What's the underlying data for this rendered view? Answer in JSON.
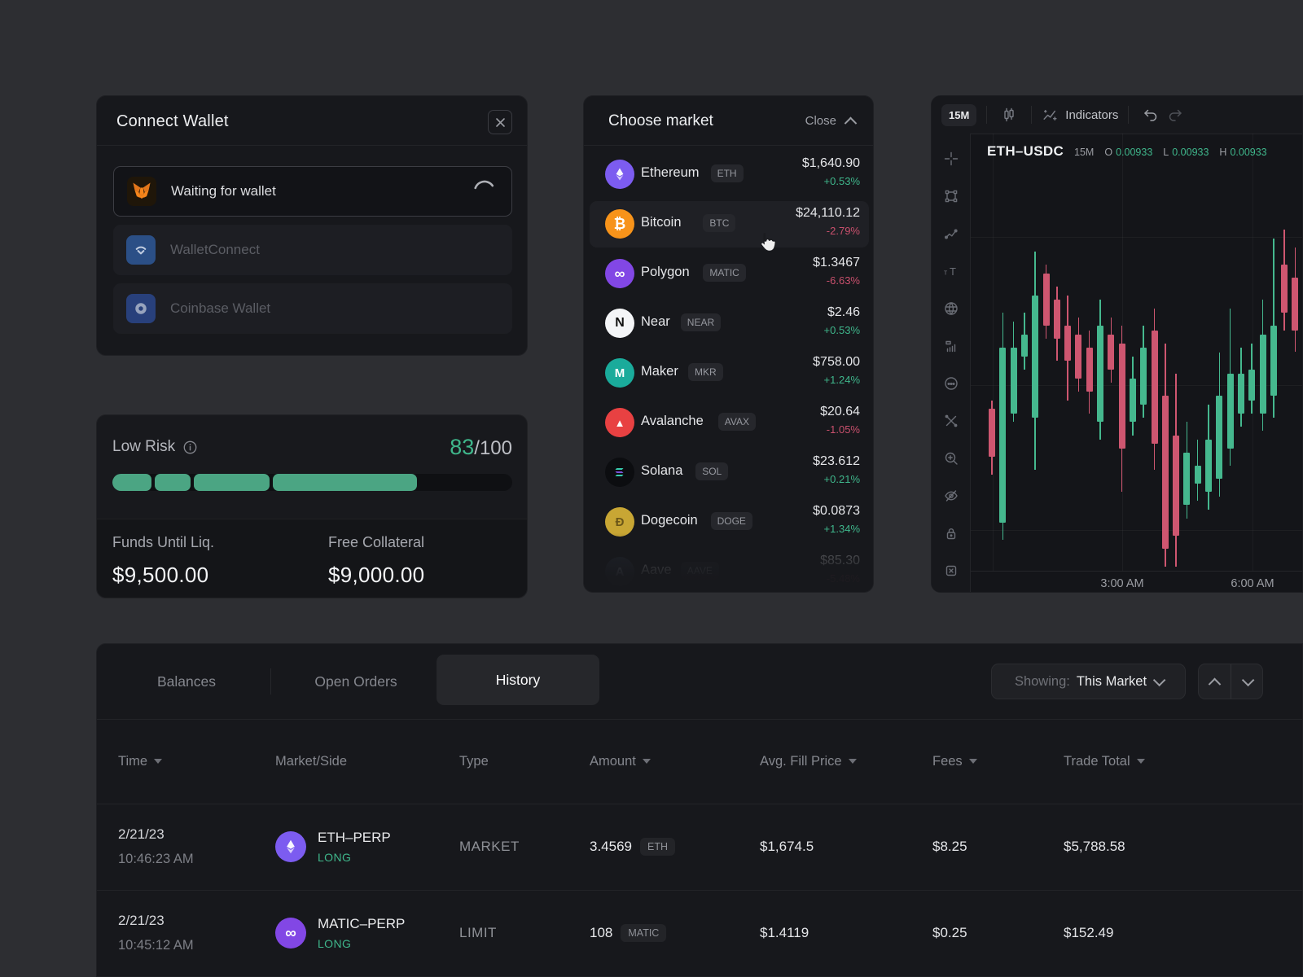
{
  "colors": {
    "accent_green": "#3fb68b",
    "accent_red": "#c9506d",
    "candle_up": "#45b88e",
    "candle_down": "#ce5670",
    "purple": "#7c5cf0"
  },
  "connect_wallet": {
    "title": "Connect Wallet",
    "options": [
      {
        "label": "Waiting for wallet",
        "icon": "metamask",
        "state": "loading"
      },
      {
        "label": "WalletConnect",
        "icon": "walletconnect",
        "state": "idle"
      },
      {
        "label": "Coinbase Wallet",
        "icon": "coinbase",
        "state": "idle"
      }
    ]
  },
  "risk": {
    "level_label": "Low Risk",
    "score": "83",
    "score_max": "/100",
    "funds_label": "Funds Until Liq.",
    "funds_value": "$9,500.00",
    "collateral_label": "Free Collateral",
    "collateral_value": "$9,000.00"
  },
  "market_picker": {
    "title": "Choose market",
    "close_label": "Close",
    "markets": [
      {
        "name": "Ethereum",
        "symbol": "ETH",
        "price": "$1,640.90",
        "change": "+0.53%",
        "dir": "up"
      },
      {
        "name": "Bitcoin",
        "symbol": "BTC",
        "price": "$24,110.12",
        "change": "-2.79%",
        "dir": "down"
      },
      {
        "name": "Polygon",
        "symbol": "MATIC",
        "price": "$1.3467",
        "change": "-6.63%",
        "dir": "down"
      },
      {
        "name": "Near",
        "symbol": "NEAR",
        "price": "$2.46",
        "change": "+0.53%",
        "dir": "up"
      },
      {
        "name": "Maker",
        "symbol": "MKR",
        "price": "$758.00",
        "change": "+1.24%",
        "dir": "up"
      },
      {
        "name": "Avalanche",
        "symbol": "AVAX",
        "price": "$20.64",
        "change": "-1.05%",
        "dir": "down"
      },
      {
        "name": "Solana",
        "symbol": "SOL",
        "price": "$23.612",
        "change": "+0.21%",
        "dir": "up"
      },
      {
        "name": "Dogecoin",
        "symbol": "DOGE",
        "price": "$0.0873",
        "change": "+1.34%",
        "dir": "up"
      },
      {
        "name": "Aave",
        "symbol": "AAVE",
        "price": "$85.30",
        "change": "-5.48%",
        "dir": "down"
      }
    ]
  },
  "chart": {
    "toolbar": {
      "interval": "15M",
      "indicators_label": "Indicators"
    },
    "legend": {
      "pair": "ETH–USDC",
      "interval": "15M",
      "o_label": "O",
      "o": "0.00933",
      "l_label": "L",
      "l": "0.00933",
      "h_label": "H",
      "h": "0.00933"
    },
    "time_labels": [
      "3:00 AM",
      "6:00 AM"
    ],
    "chart_data": {
      "type": "candlestick",
      "note": "values are percent of plot height from top: [dir, bodyTop, bodyBottom, wickHigh, wickLow]",
      "candles": [
        [
          "d",
          63,
          74,
          61,
          78
        ],
        [
          "u",
          49,
          89,
          41,
          93
        ],
        [
          "u",
          49,
          64,
          43,
          66
        ],
        [
          "u",
          46,
          51,
          41,
          54
        ],
        [
          "u",
          37,
          65,
          27,
          77
        ],
        [
          "d",
          32,
          44,
          30,
          47
        ],
        [
          "d",
          38,
          47,
          35,
          52
        ],
        [
          "d",
          44,
          52,
          37,
          61
        ],
        [
          "d",
          46,
          56,
          42,
          59
        ],
        [
          "d",
          49,
          59,
          45,
          64
        ],
        [
          "u",
          44,
          66,
          38,
          70
        ],
        [
          "d",
          46,
          54,
          42,
          57
        ],
        [
          "d",
          48,
          72,
          44,
          82
        ],
        [
          "u",
          56,
          66,
          51,
          69
        ],
        [
          "u",
          49,
          62,
          44,
          65
        ],
        [
          "d",
          45,
          71,
          40,
          77
        ],
        [
          "d",
          60,
          95,
          48,
          99
        ],
        [
          "d",
          69,
          92,
          55,
          99
        ],
        [
          "u",
          73,
          85,
          66,
          88
        ],
        [
          "u",
          76,
          80,
          70,
          84
        ],
        [
          "u",
          70,
          82,
          62,
          86
        ],
        [
          "u",
          60,
          79,
          50,
          83
        ],
        [
          "u",
          55,
          72,
          40,
          76
        ],
        [
          "u",
          55,
          64,
          49,
          67
        ],
        [
          "u",
          54,
          61,
          48,
          64
        ],
        [
          "u",
          46,
          64,
          38,
          68
        ],
        [
          "u",
          44,
          60,
          24,
          65
        ],
        [
          "d",
          30,
          41,
          22,
          45
        ],
        [
          "d",
          33,
          45,
          26,
          50
        ],
        [
          "d",
          38,
          52,
          32,
          56
        ]
      ]
    }
  },
  "bottom": {
    "tabs": {
      "balances": "Balances",
      "open_orders": "Open Orders",
      "history": "History"
    },
    "showing_label": "Showing:",
    "showing_value": "This Market",
    "columns": {
      "time": "Time",
      "market_side": "Market/Side",
      "type": "Type",
      "amount": "Amount",
      "avg_fill": "Avg. Fill Price",
      "fees": "Fees",
      "trade_total": "Trade Total"
    },
    "rows": [
      {
        "date": "2/21/23",
        "time": "10:46:23 AM",
        "market": "ETH–PERP",
        "side": "LONG",
        "type": "MARKET",
        "amount": "3.4569",
        "unit": "ETH",
        "avg_fill": "$1,674.5",
        "fees": "$8.25",
        "total": "$5,788.58"
      },
      {
        "date": "2/21/23",
        "time": "10:45:12 AM",
        "market": "MATIC–PERP",
        "side": "LONG",
        "type": "LIMIT",
        "amount": "108",
        "unit": "MATIC",
        "avg_fill": "$1.4119",
        "fees": "$0.25",
        "total": "$152.49"
      }
    ]
  }
}
